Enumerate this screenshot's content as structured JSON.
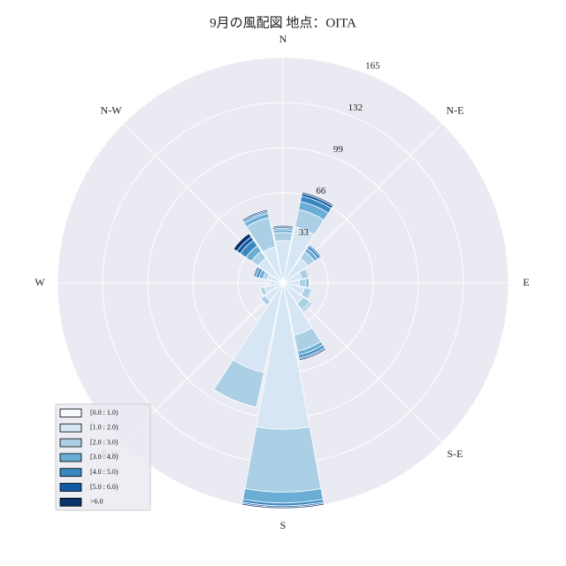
{
  "chart_data": {
    "type": "windrose",
    "title": "9月の風配図 地点：OITA",
    "x": [
      0,
      22.5,
      45,
      67.5,
      90,
      112.5,
      135,
      157.5,
      180,
      202.5,
      225,
      247.5,
      270,
      292.5,
      315,
      337.5
    ],
    "xticks": [
      {
        "value": 0,
        "label": "N"
      },
      {
        "value": 45,
        "label": "N-E"
      },
      {
        "value": 90,
        "label": "E"
      },
      {
        "value": 135,
        "label": "S-E"
      },
      {
        "value": 180,
        "label": "S"
      },
      {
        "value": 225,
        "label": "S-W"
      },
      {
        "value": 270,
        "label": "W"
      },
      {
        "value": 315,
        "label": "N-W"
      }
    ],
    "ylim": [
      0,
      165
    ],
    "yticks": [
      33,
      66,
      99,
      132,
      165
    ],
    "grid": true,
    "legend": "lower left",
    "series": [
      {
        "name": "[0.0 : 1.0)",
        "color": "#f7fbff",
        "values": [
          3,
          3,
          2,
          2,
          2,
          2,
          2,
          2,
          3,
          2,
          2,
          2,
          2,
          2,
          2,
          2
        ]
      },
      {
        "name": "[1.0 : 2.0)",
        "color": "#d6e6f4",
        "values": [
          28,
          39,
          20,
          12,
          10,
          14,
          16,
          37,
          104,
          65,
          14,
          12,
          5,
          10,
          20,
          25
        ]
      },
      {
        "name": "[2.0 : 3.0)",
        "color": "#abd0e6",
        "values": [
          6,
          13,
          6,
          5,
          5,
          5,
          6,
          12,
          46,
          26,
          4,
          3,
          1,
          3,
          6,
          22
        ]
      },
      {
        "name": "[3.0 : 4.0)",
        "color": "#6aaed6",
        "values": [
          2,
          6,
          3,
          1,
          2,
          1,
          1,
          3,
          8,
          0,
          0,
          0,
          1,
          3,
          5,
          3
        ]
      },
      {
        "name": "[4.0 : 5.0)",
        "color": "#3787c0",
        "values": [
          1,
          4,
          2,
          0,
          0,
          0,
          1,
          2,
          2,
          0,
          0,
          0,
          0,
          2,
          5,
          1
        ]
      },
      {
        "name": "[5.0 : 6.0)",
        "color": "#105ba4",
        "values": [
          1,
          2,
          1,
          0,
          0,
          0,
          0,
          1,
          1,
          0,
          0,
          0,
          0,
          1,
          3,
          1
        ]
      },
      {
        "name": ">6.0",
        "color": "#08306b",
        "values": [
          1,
          1,
          0,
          0,
          0,
          0,
          0,
          1,
          1,
          0,
          0,
          0,
          0,
          1,
          3,
          1
        ]
      }
    ]
  }
}
